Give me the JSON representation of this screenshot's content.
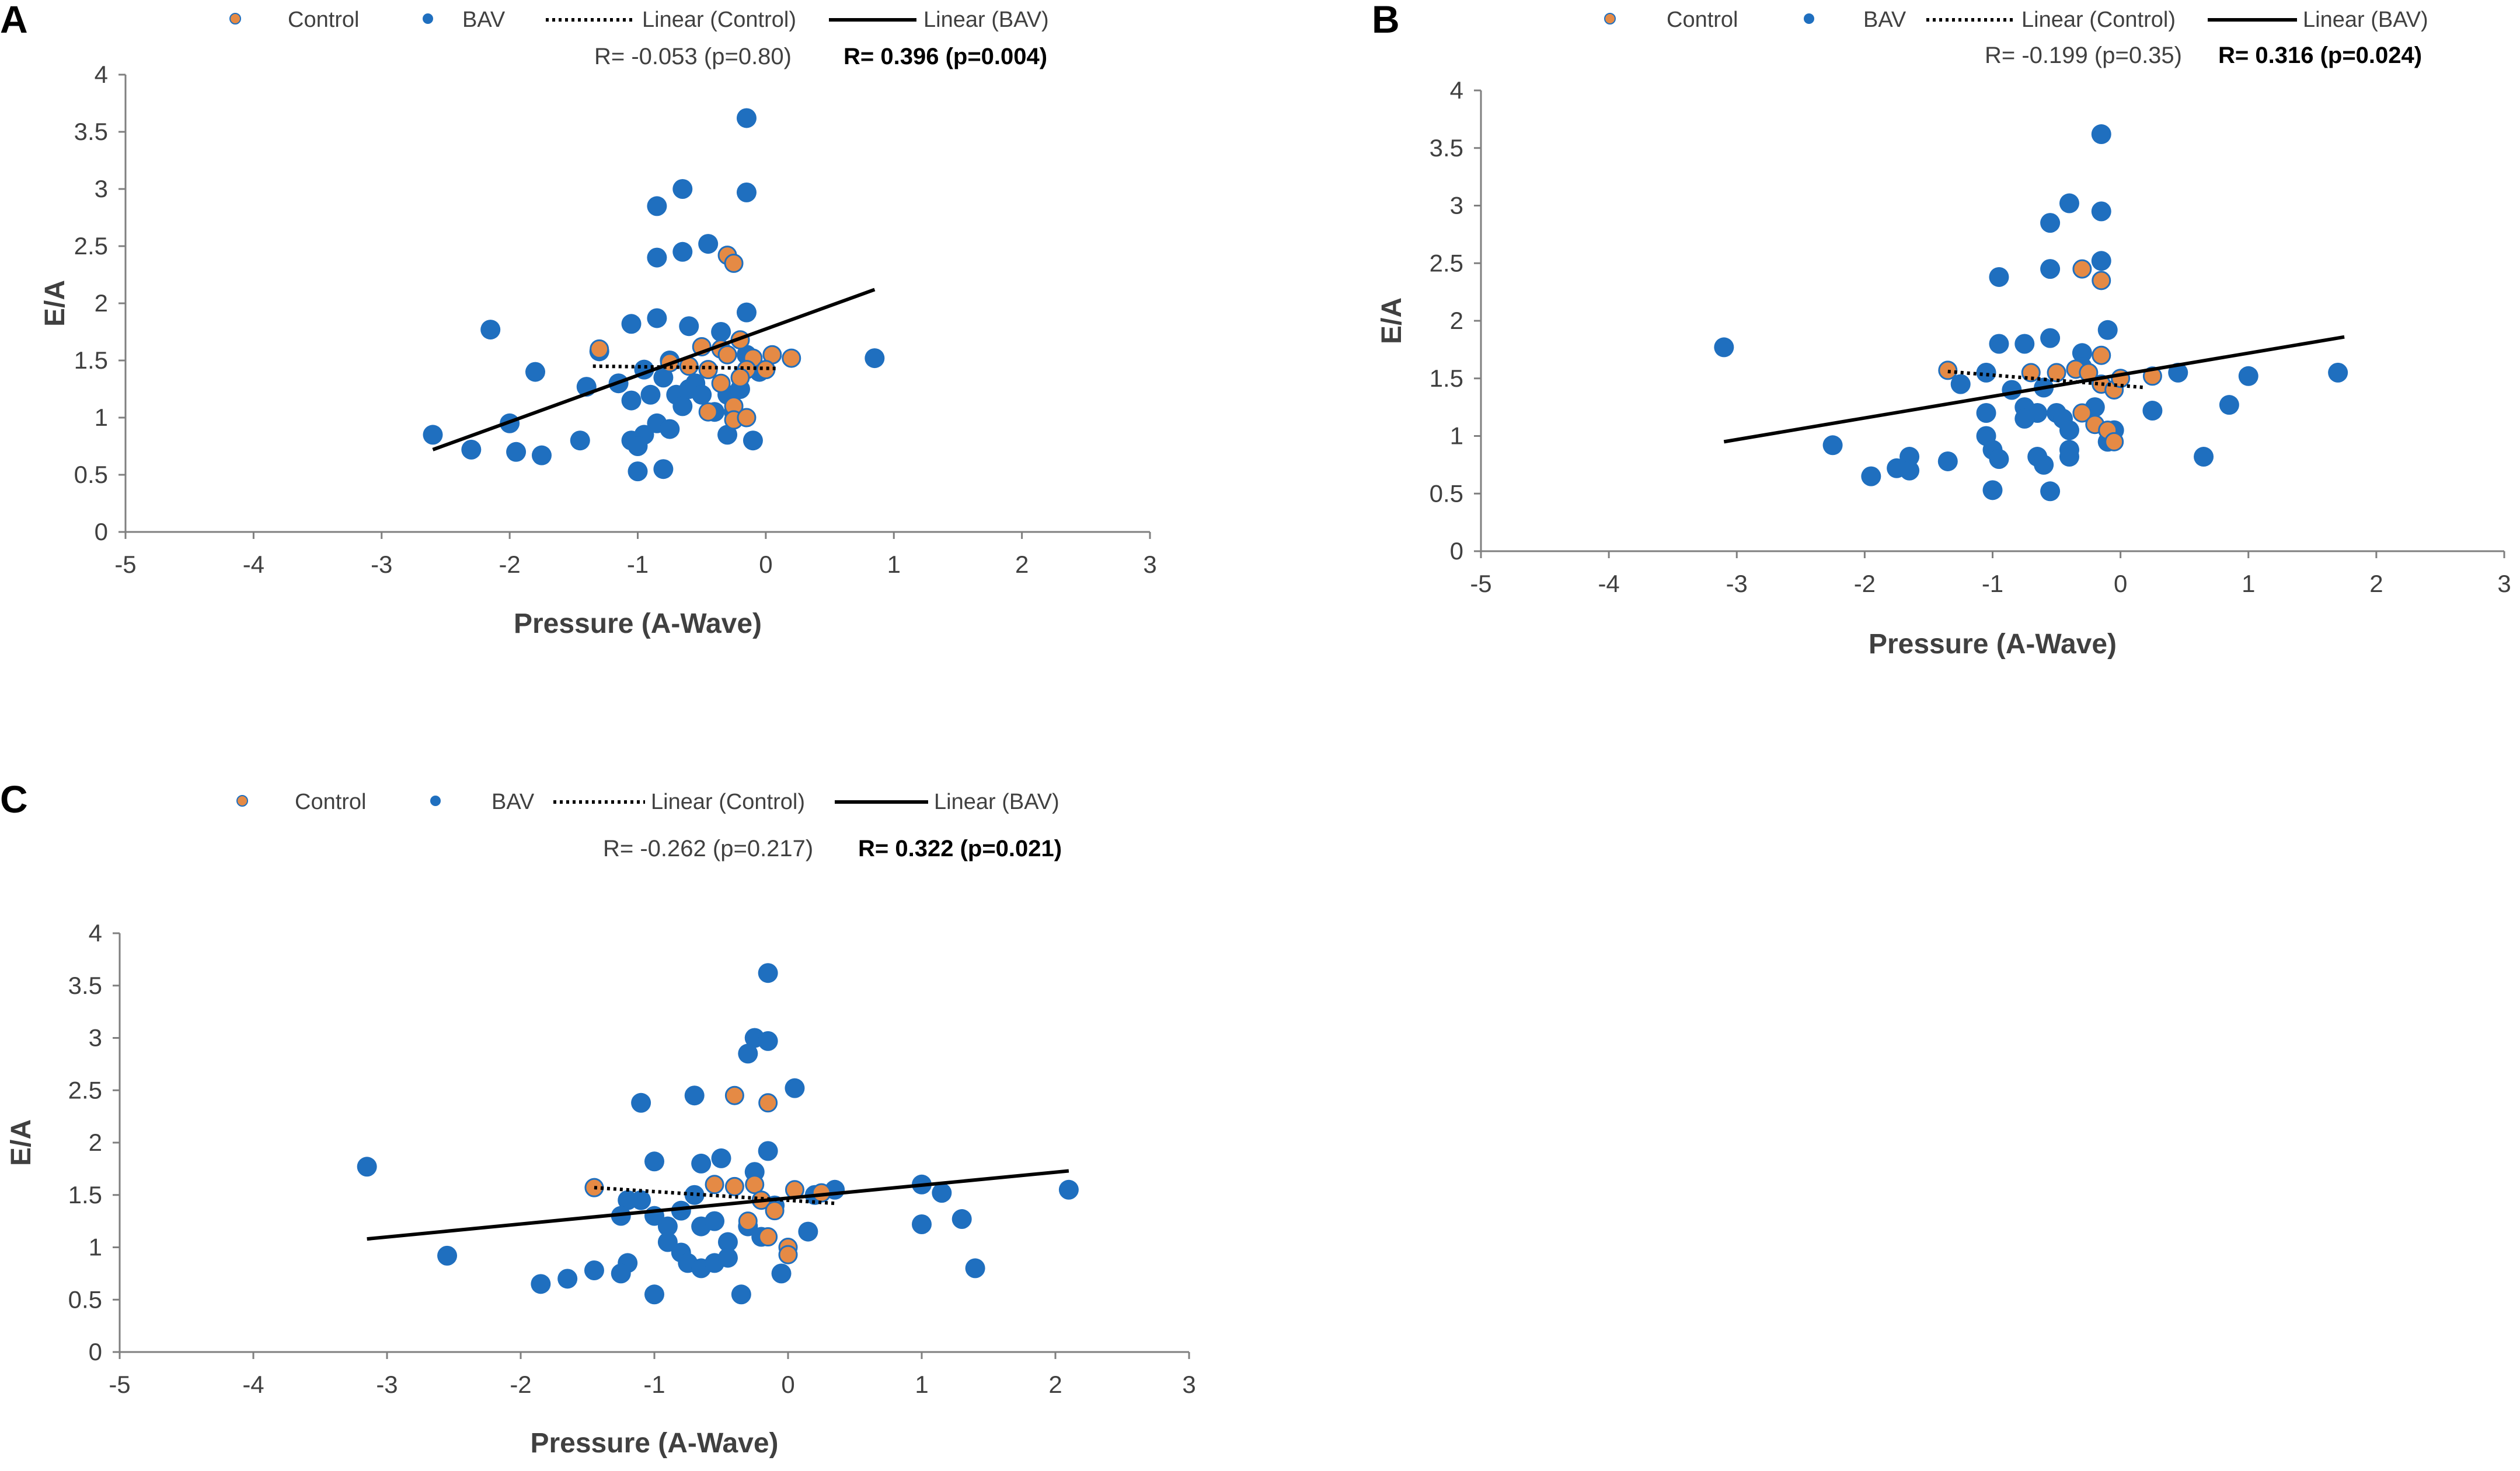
{
  "colors": {
    "bav": "#1F6FBF",
    "control": "#E58A45",
    "control_edge": "#1F6FBF",
    "line": "#000000",
    "axis": "#7f7f7f"
  },
  "chart_data": [
    {
      "panel": "A",
      "type": "scatter",
      "xlabel": "Pressure (A-Wave)",
      "ylabel": "E/A",
      "xlim": [
        -5,
        3
      ],
      "ylim": [
        0,
        4
      ],
      "xticks": [
        -5,
        -4,
        -3,
        -2,
        -1,
        0,
        1,
        2,
        3
      ],
      "yticks": [
        0,
        0.5,
        1,
        1.5,
        2,
        2.5,
        3,
        3.5,
        4
      ],
      "legend": [
        "Control",
        "BAV",
        "Linear (Control)",
        "Linear (BAV)"
      ],
      "r_control": "R= -0.053 (p=0.80)",
      "r_bav": "R= 0.396 (p=0.004)",
      "series": [
        {
          "name": "BAV",
          "points": [
            [
              -0.15,
              3.62
            ],
            [
              -0.65,
              3.0
            ],
            [
              -0.85,
              2.85
            ],
            [
              -0.15,
              2.97
            ],
            [
              -0.85,
              2.4
            ],
            [
              -0.65,
              2.45
            ],
            [
              -0.45,
              2.52
            ],
            [
              -0.15,
              1.92
            ],
            [
              -0.85,
              1.87
            ],
            [
              -1.05,
              1.82
            ],
            [
              -0.6,
              1.8
            ],
            [
              -2.15,
              1.77
            ],
            [
              -1.8,
              1.4
            ],
            [
              -1.3,
              1.58
            ],
            [
              -1.4,
              1.27
            ],
            [
              -1.15,
              1.3
            ],
            [
              -1.05,
              1.15
            ],
            [
              -0.95,
              1.42
            ],
            [
              -0.9,
              1.2
            ],
            [
              -0.8,
              1.35
            ],
            [
              -0.75,
              1.5
            ],
            [
              -0.7,
              1.2
            ],
            [
              -0.65,
              1.1
            ],
            [
              -0.6,
              1.25
            ],
            [
              -0.55,
              1.3
            ],
            [
              -0.5,
              1.2
            ],
            [
              -0.4,
              1.05
            ],
            [
              -0.3,
              1.2
            ],
            [
              -0.2,
              1.25
            ],
            [
              -0.15,
              1.55
            ],
            [
              -0.05,
              1.4
            ],
            [
              -0.35,
              1.75
            ],
            [
              -0.25,
              1.05
            ],
            [
              -0.85,
              0.95
            ],
            [
              -0.75,
              0.9
            ],
            [
              -0.95,
              0.85
            ],
            [
              -1.05,
              0.8
            ],
            [
              -1.0,
              0.75
            ],
            [
              -1.45,
              0.8
            ],
            [
              -2.6,
              0.85
            ],
            [
              -2.3,
              0.72
            ],
            [
              -2.0,
              0.95
            ],
            [
              -1.95,
              0.7
            ],
            [
              -1.75,
              0.67
            ],
            [
              -1.0,
              0.53
            ],
            [
              -0.8,
              0.55
            ],
            [
              -0.3,
              0.85
            ],
            [
              -0.1,
              0.8
            ],
            [
              0.85,
              1.52
            ]
          ]
        },
        {
          "name": "Control",
          "points": [
            [
              -0.3,
              2.42
            ],
            [
              -0.25,
              2.35
            ],
            [
              -1.3,
              1.6
            ],
            [
              -0.5,
              1.62
            ],
            [
              -0.35,
              1.6
            ],
            [
              -0.2,
              1.68
            ],
            [
              -0.3,
              1.55
            ],
            [
              -0.1,
              1.52
            ],
            [
              0.05,
              1.55
            ],
            [
              0.2,
              1.52
            ],
            [
              -0.75,
              1.48
            ],
            [
              -0.6,
              1.45
            ],
            [
              -0.45,
              1.42
            ],
            [
              -0.15,
              1.42
            ],
            [
              0.0,
              1.42
            ],
            [
              -0.35,
              1.3
            ],
            [
              -0.2,
              1.35
            ],
            [
              -0.25,
              1.1
            ],
            [
              -0.25,
              0.98
            ],
            [
              -0.15,
              1.0
            ],
            [
              -0.45,
              1.05
            ]
          ]
        }
      ],
      "lines": [
        {
          "name": "Linear (BAV)",
          "style": "solid",
          "from": [
            -2.6,
            0.72
          ],
          "to": [
            0.85,
            2.12
          ]
        },
        {
          "name": "Linear (Control)",
          "style": "dotted",
          "from": [
            -1.35,
            1.45
          ],
          "to": [
            0.1,
            1.43
          ]
        }
      ]
    },
    {
      "panel": "B",
      "type": "scatter",
      "xlabel": "Pressure (A-Wave)",
      "ylabel": "E/A",
      "xlim": [
        -5,
        3
      ],
      "ylim": [
        0,
        4
      ],
      "xticks": [
        -5,
        -4,
        -3,
        -2,
        -1,
        0,
        1,
        2,
        3
      ],
      "yticks": [
        0,
        0.5,
        1,
        1.5,
        2,
        2.5,
        3,
        3.5,
        4
      ],
      "legend": [
        "Control",
        "BAV",
        "Linear (Control)",
        "Linear (BAV)"
      ],
      "r_control": "R= -0.199 (p=0.35)",
      "r_bav": "R= 0.316 (p=0.024)",
      "series": [
        {
          "name": "BAV",
          "points": [
            [
              -0.15,
              3.62
            ],
            [
              -0.4,
              3.02
            ],
            [
              -0.15,
              2.95
            ],
            [
              -0.55,
              2.85
            ],
            [
              -0.15,
              2.52
            ],
            [
              -0.55,
              2.45
            ],
            [
              -0.95,
              2.38
            ],
            [
              -0.1,
              1.92
            ],
            [
              -0.55,
              1.85
            ],
            [
              -0.75,
              1.8
            ],
            [
              -0.95,
              1.8
            ],
            [
              -0.3,
              1.72
            ],
            [
              -1.05,
              1.55
            ],
            [
              -1.25,
              1.45
            ],
            [
              -0.85,
              1.4
            ],
            [
              -0.6,
              1.42
            ],
            [
              -0.3,
              1.6
            ],
            [
              -0.75,
              1.25
            ],
            [
              -0.65,
              1.2
            ],
            [
              -0.5,
              1.2
            ],
            [
              -0.2,
              1.25
            ],
            [
              -0.45,
              1.15
            ],
            [
              -1.05,
              1.2
            ],
            [
              0.45,
              1.55
            ],
            [
              0.25,
              1.22
            ],
            [
              -0.05,
              1.05
            ],
            [
              -0.4,
              1.05
            ],
            [
              -0.75,
              1.15
            ],
            [
              -1.05,
              1.0
            ],
            [
              -1.0,
              0.88
            ],
            [
              -0.95,
              0.8
            ],
            [
              -0.65,
              0.82
            ],
            [
              -0.6,
              0.75
            ],
            [
              -0.4,
              0.88
            ],
            [
              -0.4,
              0.82
            ],
            [
              -0.1,
              0.95
            ],
            [
              -1.35,
              0.78
            ],
            [
              -1.65,
              0.82
            ],
            [
              -1.65,
              0.7
            ],
            [
              -1.75,
              0.72
            ],
            [
              -1.95,
              0.65
            ],
            [
              -2.25,
              0.92
            ],
            [
              -3.1,
              1.77
            ],
            [
              -1.0,
              0.53
            ],
            [
              -0.55,
              0.52
            ],
            [
              0.65,
              0.82
            ],
            [
              0.85,
              1.27
            ],
            [
              1.0,
              1.52
            ],
            [
              1.7,
              1.55
            ]
          ]
        },
        {
          "name": "Control",
          "points": [
            [
              -0.3,
              2.45
            ],
            [
              -0.15,
              2.35
            ],
            [
              -1.35,
              1.57
            ],
            [
              -0.5,
              1.55
            ],
            [
              -0.35,
              1.58
            ],
            [
              -0.25,
              1.55
            ],
            [
              -0.15,
              1.7
            ],
            [
              0.25,
              1.52
            ],
            [
              -0.7,
              1.55
            ],
            [
              -0.15,
              1.45
            ],
            [
              -0.05,
              1.4
            ],
            [
              0.0,
              1.5
            ],
            [
              -0.3,
              1.2
            ],
            [
              -0.2,
              1.1
            ],
            [
              -0.1,
              1.05
            ],
            [
              -0.05,
              0.95
            ]
          ]
        }
      ],
      "lines": [
        {
          "name": "Linear (BAV)",
          "style": "solid",
          "from": [
            -3.1,
            0.95
          ],
          "to": [
            1.75,
            1.86
          ]
        },
        {
          "name": "Linear (Control)",
          "style": "dotted",
          "from": [
            -1.35,
            1.56
          ],
          "to": [
            0.2,
            1.42
          ]
        }
      ]
    },
    {
      "panel": "C",
      "type": "scatter",
      "xlabel": "Pressure (A-Wave)",
      "ylabel": "E/A",
      "xlim": [
        -5,
        3
      ],
      "ylim": [
        0,
        4
      ],
      "xticks": [
        -5,
        -4,
        -3,
        -2,
        -1,
        0,
        1,
        2,
        3
      ],
      "yticks": [
        0,
        0.5,
        1,
        1.5,
        2,
        2.5,
        3,
        3.5,
        4
      ],
      "legend": [
        "Control",
        "BAV",
        "Linear (Control)",
        "Linear (BAV)"
      ],
      "r_control": "R= -0.262 (p=0.217)",
      "r_bav": "R= 0.322 (p=0.021)",
      "series": [
        {
          "name": "BAV",
          "points": [
            [
              -0.15,
              3.62
            ],
            [
              -0.25,
              3.0
            ],
            [
              -0.15,
              2.97
            ],
            [
              -0.3,
              2.85
            ],
            [
              0.05,
              2.52
            ],
            [
              -0.7,
              2.45
            ],
            [
              -1.1,
              2.38
            ],
            [
              -0.15,
              1.92
            ],
            [
              -0.5,
              1.85
            ],
            [
              -1.0,
              1.82
            ],
            [
              -0.65,
              1.8
            ],
            [
              -0.25,
              1.72
            ],
            [
              -3.15,
              1.77
            ],
            [
              -1.1,
              1.45
            ],
            [
              -1.2,
              1.45
            ],
            [
              -1.25,
              1.3
            ],
            [
              -1.0,
              1.3
            ],
            [
              -0.9,
              1.2
            ],
            [
              -0.8,
              1.35
            ],
            [
              -0.7,
              1.5
            ],
            [
              -0.65,
              1.2
            ],
            [
              -0.55,
              1.25
            ],
            [
              -0.45,
              1.05
            ],
            [
              -0.3,
              1.2
            ],
            [
              -0.2,
              1.1
            ],
            [
              -0.1,
              1.4
            ],
            [
              0.15,
              1.15
            ],
            [
              0.35,
              1.55
            ],
            [
              0.2,
              1.5
            ],
            [
              -0.9,
              1.05
            ],
            [
              -0.8,
              0.95
            ],
            [
              -0.75,
              0.85
            ],
            [
              -0.65,
              0.8
            ],
            [
              -0.55,
              0.85
            ],
            [
              -0.45,
              0.9
            ],
            [
              -1.2,
              0.85
            ],
            [
              -1.25,
              0.75
            ],
            [
              -1.45,
              0.78
            ],
            [
              -0.05,
              0.75
            ],
            [
              -1.85,
              0.65
            ],
            [
              -1.65,
              0.7
            ],
            [
              -2.55,
              0.92
            ],
            [
              -1.0,
              0.55
            ],
            [
              -0.35,
              0.55
            ],
            [
              1.0,
              1.6
            ],
            [
              1.15,
              1.52
            ],
            [
              1.0,
              1.22
            ],
            [
              1.3,
              1.27
            ],
            [
              1.4,
              0.8
            ],
            [
              2.1,
              1.55
            ]
          ]
        },
        {
          "name": "Control",
          "points": [
            [
              -0.4,
              2.45
            ],
            [
              -0.15,
              2.38
            ],
            [
              -1.45,
              1.57
            ],
            [
              -0.55,
              1.6
            ],
            [
              -0.4,
              1.58
            ],
            [
              -0.25,
              1.6
            ],
            [
              0.05,
              1.55
            ],
            [
              0.25,
              1.52
            ],
            [
              -0.2,
              1.45
            ],
            [
              -0.1,
              1.35
            ],
            [
              -0.3,
              1.25
            ],
            [
              -0.15,
              1.1
            ],
            [
              0.0,
              1.0
            ],
            [
              0.0,
              0.93
            ]
          ]
        }
      ],
      "lines": [
        {
          "name": "Linear (BAV)",
          "style": "solid",
          "from": [
            -3.15,
            1.08
          ],
          "to": [
            2.1,
            1.73
          ]
        },
        {
          "name": "Linear (Control)",
          "style": "dotted",
          "from": [
            -1.45,
            1.57
          ],
          "to": [
            0.35,
            1.42
          ]
        }
      ]
    }
  ]
}
